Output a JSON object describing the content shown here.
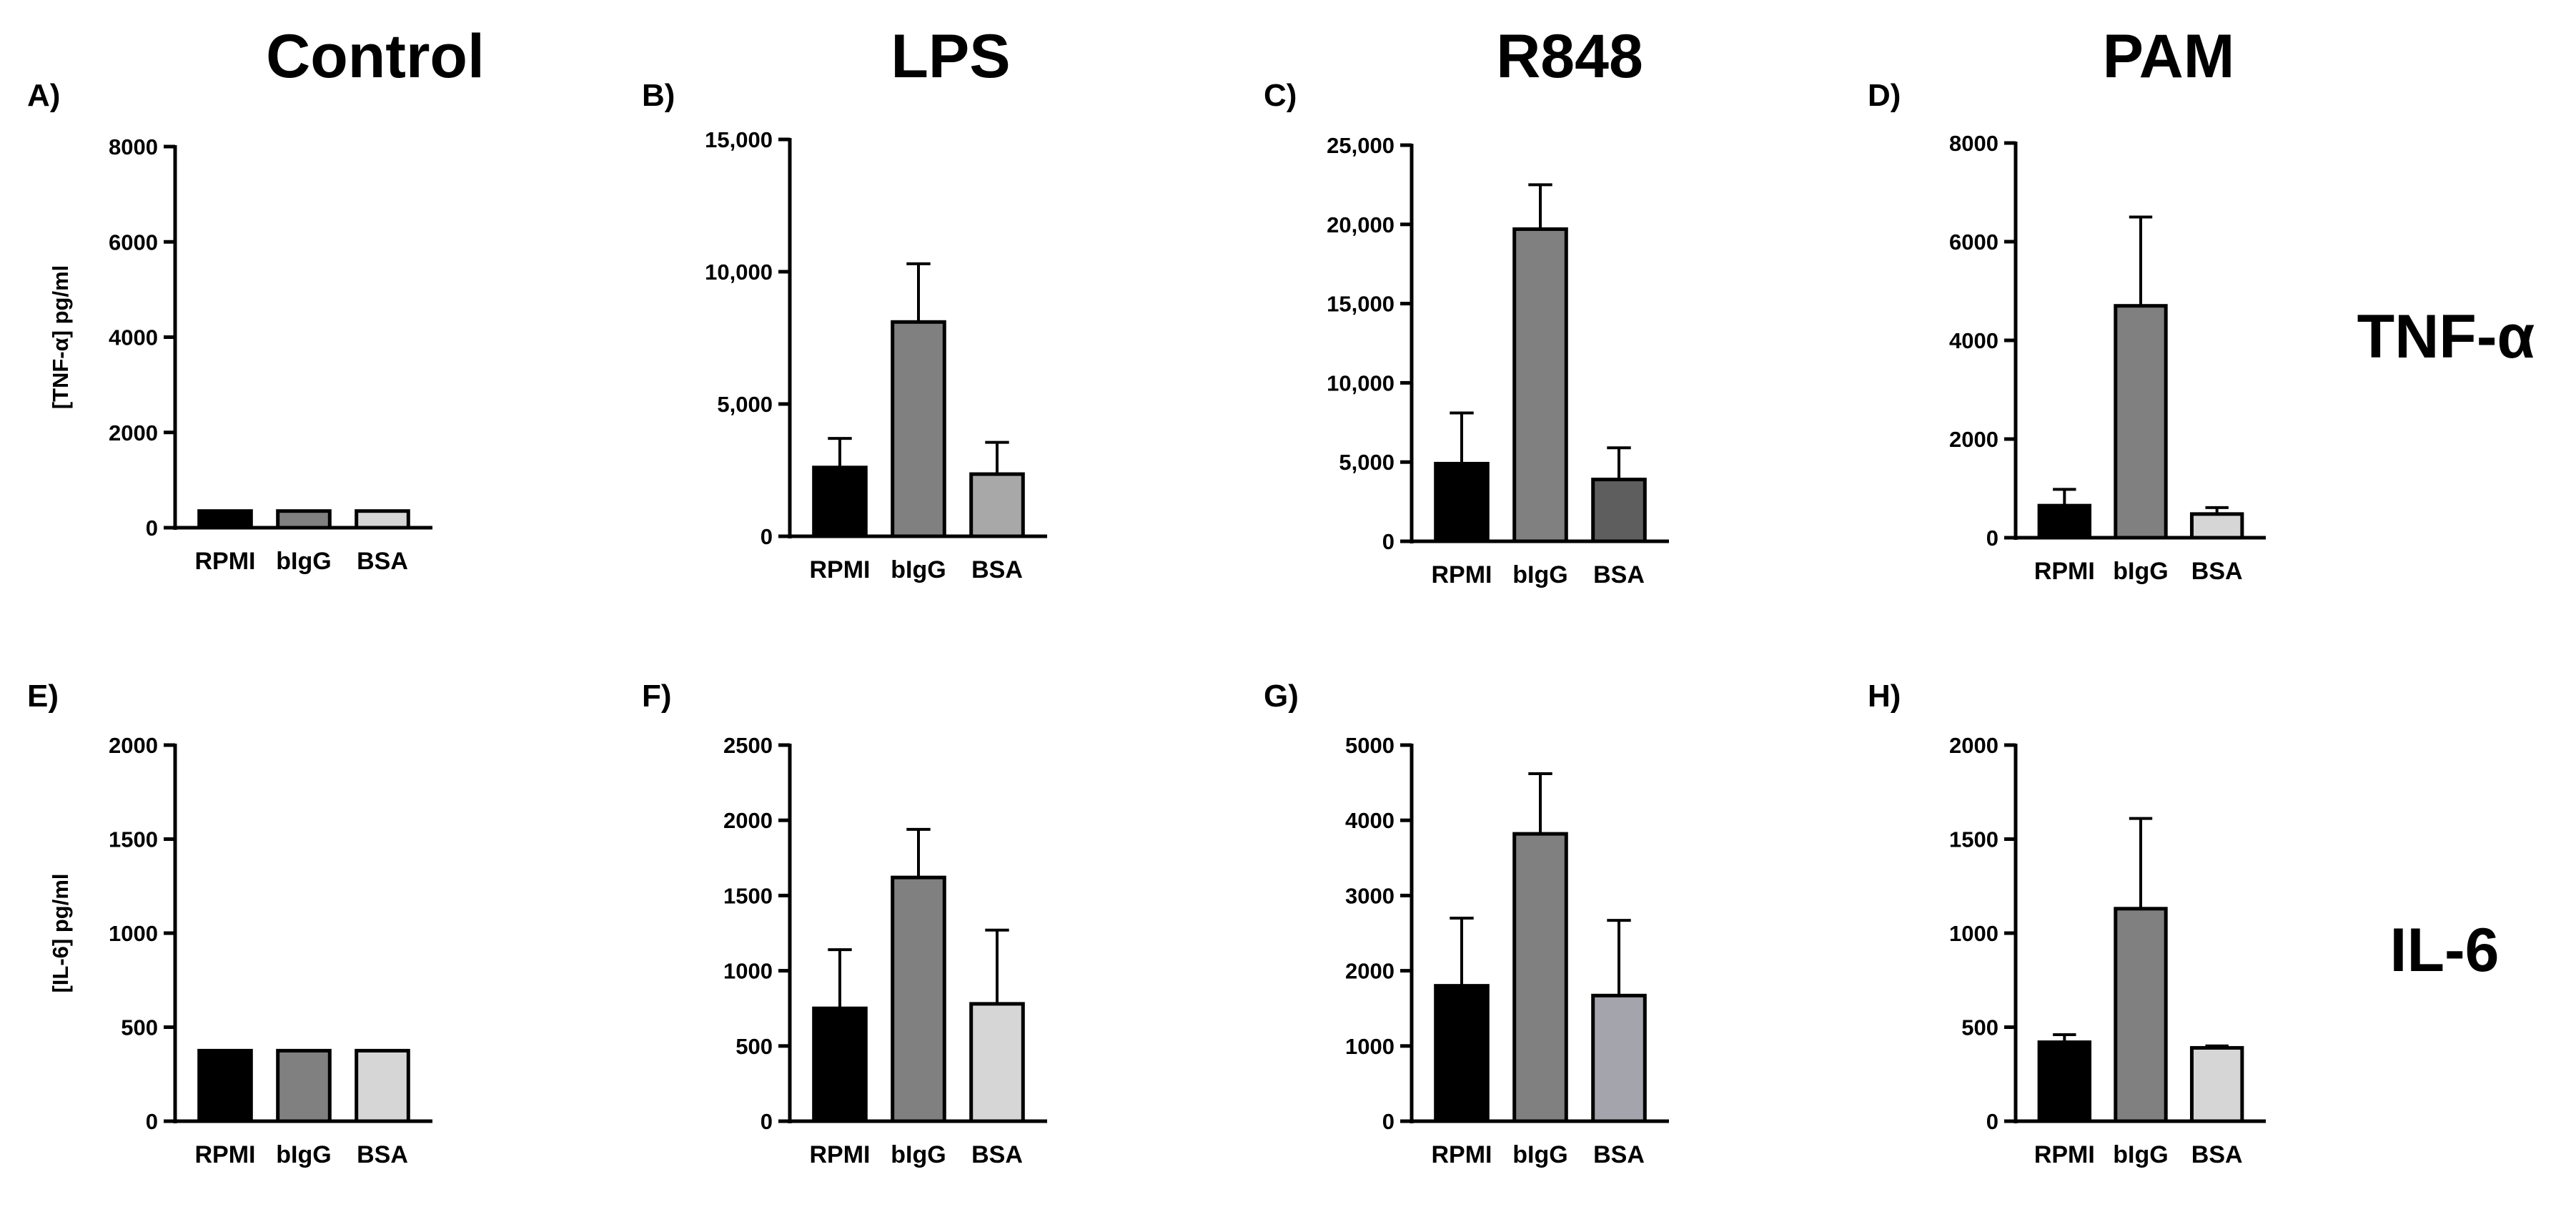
{
  "columns": [
    "Control",
    "LPS",
    "R848",
    "PAM"
  ],
  "rows": [
    "TNF-α",
    "IL-6"
  ],
  "colors": {
    "rpmi": "#000000",
    "bigg": "#808080",
    "bsa_light": "#d6d6d6",
    "bsa_mid": "#a8a8a8",
    "bsa_dark": "#5e5e5e",
    "bsa_slate": "#a4a4ac"
  },
  "chart_data": [
    {
      "type": "bar",
      "panel": "A)",
      "categories": [
        "RPMI",
        "bIgG",
        "BSA"
      ],
      "values": [
        350,
        350,
        350
      ],
      "errors": [
        0,
        0,
        0
      ],
      "ylabel": "[TNF-α] pg/ml",
      "ylim": [
        0,
        8000
      ],
      "ticks": [
        0,
        2000,
        4000,
        6000,
        8000
      ],
      "tick_labels": [
        "0",
        "2000",
        "4000",
        "6000",
        "8000"
      ],
      "bar_colors": [
        "rpmi",
        "bigg",
        "bsa_light"
      ]
    },
    {
      "type": "bar",
      "panel": "B)",
      "categories": [
        "RPMI",
        "bIgG",
        "BSA"
      ],
      "values": [
        2600,
        8100,
        2350
      ],
      "errors": [
        1100,
        2200,
        1200
      ],
      "ylabel": "",
      "ylim": [
        0,
        15000
      ],
      "ticks": [
        0,
        5000,
        10000,
        15000
      ],
      "tick_labels": [
        "0",
        "5,000",
        "10,000",
        "15,000"
      ],
      "bar_colors": [
        "rpmi",
        "bigg",
        "bsa_mid"
      ]
    },
    {
      "type": "bar",
      "panel": "C)",
      "categories": [
        "RPMI",
        "bIgG",
        "BSA"
      ],
      "values": [
        4900,
        19700,
        3900
      ],
      "errors": [
        3200,
        2800,
        2000
      ],
      "ylabel": "",
      "ylim": [
        0,
        25000
      ],
      "ticks": [
        0,
        5000,
        10000,
        15000,
        20000,
        25000
      ],
      "tick_labels": [
        "0",
        "5,000",
        "10,000",
        "15,000",
        "20,000",
        "25,000"
      ],
      "bar_colors": [
        "rpmi",
        "bigg",
        "bsa_dark"
      ]
    },
    {
      "type": "bar",
      "panel": "D)",
      "categories": [
        "RPMI",
        "bIgG",
        "BSA"
      ],
      "values": [
        650,
        4700,
        480
      ],
      "errors": [
        330,
        1800,
        130
      ],
      "ylabel": "",
      "ylim": [
        0,
        8000
      ],
      "ticks": [
        0,
        2000,
        4000,
        6000,
        8000
      ],
      "tick_labels": [
        "0",
        "2000",
        "4000",
        "6000",
        "8000"
      ],
      "bar_colors": [
        "rpmi",
        "bigg",
        "bsa_light"
      ]
    },
    {
      "type": "bar",
      "panel": "E)",
      "categories": [
        "RPMI",
        "bIgG",
        "BSA"
      ],
      "values": [
        375,
        375,
        375
      ],
      "errors": [
        0,
        0,
        0
      ],
      "ylabel": "[IL-6] pg/ml",
      "ylim": [
        0,
        2000
      ],
      "ticks": [
        0,
        500,
        1000,
        1500,
        2000
      ],
      "tick_labels": [
        "0",
        "500",
        "1000",
        "1500",
        "2000"
      ],
      "bar_colors": [
        "rpmi",
        "bigg",
        "bsa_light"
      ]
    },
    {
      "type": "bar",
      "panel": "F)",
      "categories": [
        "RPMI",
        "bIgG",
        "BSA"
      ],
      "values": [
        750,
        1620,
        780
      ],
      "errors": [
        390,
        320,
        490
      ],
      "ylabel": "",
      "ylim": [
        0,
        2500
      ],
      "ticks": [
        0,
        500,
        1000,
        1500,
        2000,
        2500
      ],
      "tick_labels": [
        "0",
        "500",
        "1000",
        "1500",
        "2000",
        "2500"
      ],
      "bar_colors": [
        "rpmi",
        "bigg",
        "bsa_light"
      ]
    },
    {
      "type": "bar",
      "panel": "G)",
      "categories": [
        "RPMI",
        "bIgG",
        "BSA"
      ],
      "values": [
        1800,
        3820,
        1670
      ],
      "errors": [
        900,
        800,
        1000
      ],
      "ylabel": "",
      "ylim": [
        0,
        5000
      ],
      "ticks": [
        0,
        1000,
        2000,
        3000,
        4000,
        5000
      ],
      "tick_labels": [
        "0",
        "1000",
        "2000",
        "3000",
        "4000",
        "5000"
      ],
      "bar_colors": [
        "rpmi",
        "bigg",
        "bsa_slate"
      ]
    },
    {
      "type": "bar",
      "panel": "H)",
      "categories": [
        "RPMI",
        "bIgG",
        "BSA"
      ],
      "values": [
        420,
        1130,
        390
      ],
      "errors": [
        40,
        480,
        10
      ],
      "ylabel": "",
      "ylim": [
        0,
        2000
      ],
      "ticks": [
        0,
        500,
        1000,
        1500,
        2000
      ],
      "tick_labels": [
        "0",
        "500",
        "1000",
        "1500",
        "2000"
      ],
      "bar_colors": [
        "rpmi",
        "bigg",
        "bsa_light"
      ]
    }
  ]
}
